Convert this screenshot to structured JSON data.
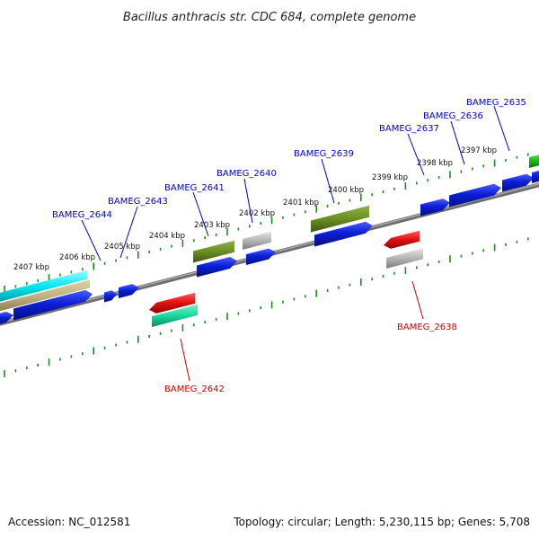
{
  "title": "Bacillus anthracis str. CDC 684, complete genome",
  "footer": {
    "accession": "Accession: NC_012581",
    "summary": "Topology: circular; Length: 5,230,115 bp; Genes: 5,708"
  },
  "colors": {
    "backbone": "#7a7a7a",
    "tick": "#1e8a1e",
    "label_forward": "#0000cc",
    "label_reverse": "#cc0000",
    "cds_blue": "#0b1fd6",
    "rrna_olive": "#6b8e23",
    "pseudo_gray": "#b4b4b4",
    "trna_cyan": "#00e5ee",
    "misc_tan": "#c2b280",
    "red": "#e01010",
    "mint": "#19d9a0",
    "green": "#22bb22"
  },
  "scale_labels": [
    {
      "kbp": 2407,
      "text": "2407 kbp"
    },
    {
      "kbp": 2406,
      "text": "2406 kbp"
    },
    {
      "kbp": 2405,
      "text": "2405 kbp"
    },
    {
      "kbp": 2404,
      "text": "2404 kbp"
    },
    {
      "kbp": 2403,
      "text": "2403 kbp"
    },
    {
      "kbp": 2402,
      "text": "2402 kbp"
    },
    {
      "kbp": 2401,
      "text": "2401 kbp"
    },
    {
      "kbp": 2400,
      "text": "2400 kbp"
    },
    {
      "kbp": 2399,
      "text": "2399 kbp"
    },
    {
      "kbp": 2398,
      "text": "2398 kbp"
    },
    {
      "kbp": 2397,
      "text": "2397 kbp"
    }
  ],
  "genes_forward": [
    {
      "label": "BAMEG_2644"
    },
    {
      "label": "BAMEG_2643"
    },
    {
      "label": "BAMEG_2641"
    },
    {
      "label": "BAMEG_2640"
    },
    {
      "label": "BAMEG_2639"
    },
    {
      "label": "BAMEG_2637"
    },
    {
      "label": "BAMEG_2636"
    },
    {
      "label": "BAMEG_2635"
    }
  ],
  "genes_reverse": [
    {
      "label": "BAMEG_2642"
    },
    {
      "label": "BAMEG_2638"
    }
  ]
}
